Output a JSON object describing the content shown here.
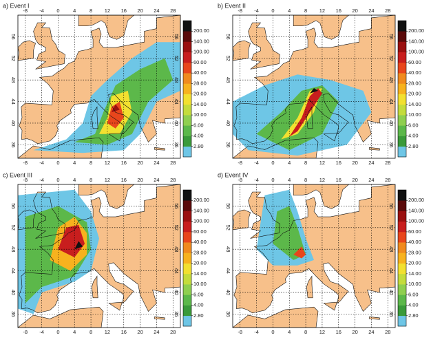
{
  "panels": [
    {
      "title": "a) Event I"
    },
    {
      "title": "b) Event II"
    },
    {
      "title": "c) Event III"
    },
    {
      "title": "d) Event IV"
    }
  ],
  "x_ticks": [
    -8,
    -4,
    0,
    4,
    8,
    12,
    16,
    20,
    24,
    28
  ],
  "y_ticks": [
    36,
    40,
    44,
    48,
    52,
    56
  ],
  "colorbar": {
    "levels": [
      {
        "value": 2.8,
        "label": "2.80"
      },
      {
        "value": 4,
        "label": "4.00"
      },
      {
        "value": 6,
        "label": "6.00"
      },
      {
        "value": 10,
        "label": "10.00"
      },
      {
        "value": 14,
        "label": "14.00"
      },
      {
        "value": 20,
        "label": "20.00"
      },
      {
        "value": 28,
        "label": "28.00"
      },
      {
        "value": 40,
        "label": "40.00"
      },
      {
        "value": 60,
        "label": "60.00"
      },
      {
        "value": 100,
        "label": "100.00"
      },
      {
        "value": 140,
        "label": "140.00"
      },
      {
        "value": 200,
        "label": "200.00"
      }
    ],
    "colors": [
      "#6ec6e6",
      "#3a9a3a",
      "#5cb84a",
      "#8fcf4f",
      "#c4dc3c",
      "#f2e030",
      "#f7b21e",
      "#f08a1e",
      "#e8461c",
      "#c81e1e",
      "#9a1010",
      "#5a0a0a",
      "#111111"
    ]
  }
}
